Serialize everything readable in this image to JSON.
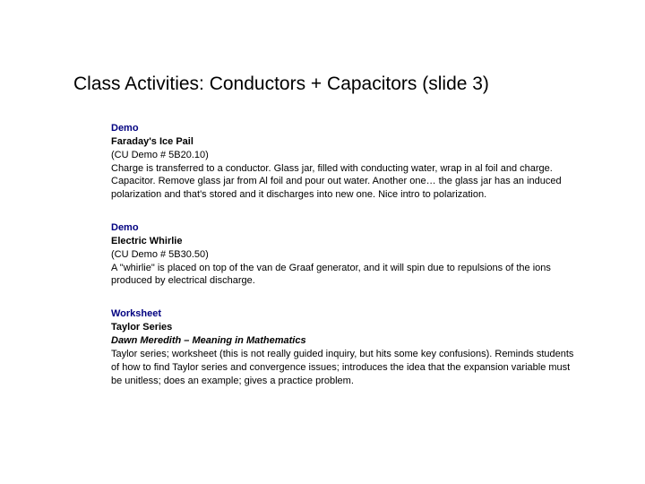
{
  "title": "Class Activities:  Conductors + Capacitors (slide 3)",
  "colors": {
    "section_type": "#000080",
    "text": "#000000",
    "background": "#ffffff"
  },
  "typography": {
    "title_fontsize": 21,
    "body_fontsize": 11,
    "font_family": "Arial"
  },
  "sections": [
    {
      "type": "Demo",
      "name": "Faraday's Ice Pail",
      "ref": "(CU Demo # 5B20.10)",
      "sub": "",
      "body": "Charge is transferred to a conductor. Glass jar, filled with conducting water, wrap in al foil and charge. Capacitor. Remove glass jar from Al foil and pour out water. Another one… the glass jar has an induced polarization and that's stored and it discharges into new one. Nice intro to polarization."
    },
    {
      "type": "Demo",
      "name": "Electric Whirlie",
      "ref": "(CU Demo # 5B30.50)",
      "sub": "",
      "body": "A \"whirlie\" is placed on top of the van de Graaf generator, and it will spin due to repulsions of the ions produced by electrical discharge."
    },
    {
      "type": "Worksheet",
      "name": "Taylor Series",
      "ref": "",
      "sub": "Dawn Meredith – Meaning in Mathematics",
      "body": "Taylor series; worksheet (this is not really guided inquiry, but hits some key confusions). Reminds students of how to find Taylor series and convergence issues; introduces the idea that the expansion variable must be unitless; does an example; gives a practice problem."
    }
  ]
}
